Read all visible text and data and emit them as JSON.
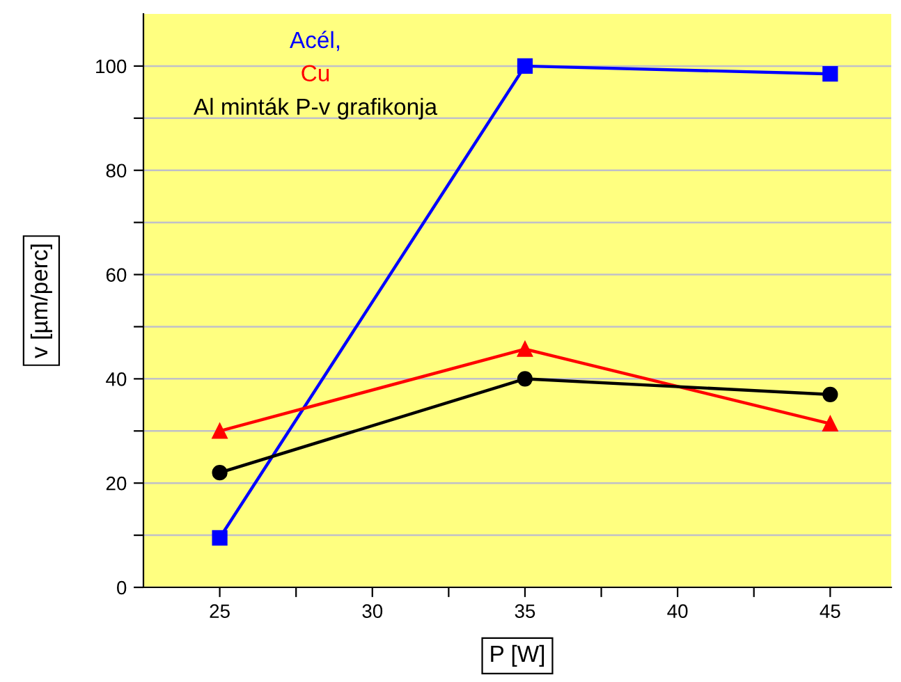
{
  "chart_data": {
    "type": "line",
    "xlabel": "P [W]",
    "ylabel": "v [µm/perc]",
    "x": [
      25,
      35,
      45
    ],
    "series": [
      {
        "name": "Acél,",
        "color": "#0000ff",
        "values": [
          9.5,
          100,
          98.5
        ],
        "marker": "square"
      },
      {
        "name": "Cu",
        "color": "#ff0000",
        "values": [
          30,
          45.7,
          31.4
        ],
        "marker": "triangle"
      },
      {
        "name": "Al minták P-v grafikonja",
        "color": "#000000",
        "values": [
          22,
          40,
          37
        ],
        "marker": "circle"
      }
    ],
    "xlim": [
      22.5,
      47
    ],
    "xticks": [
      25,
      {
        "value": 27.5,
        "label": null
      },
      30,
      {
        "value": 32.5,
        "label": null
      },
      35,
      {
        "value": 37.5,
        "label": null
      },
      40,
      {
        "value": 42.5,
        "label": null
      },
      45
    ],
    "ylim": [
      0,
      110
    ],
    "yticks": [
      0,
      {
        "value": 10,
        "label": null
      },
      20,
      {
        "value": 30,
        "label": null
      },
      40,
      {
        "value": 50,
        "label": null
      },
      60,
      {
        "value": 70,
        "label": null
      },
      80,
      {
        "value": 90,
        "label": null
      },
      100
    ],
    "grid": "y",
    "legend": "top left",
    "line_style": "solid"
  }
}
